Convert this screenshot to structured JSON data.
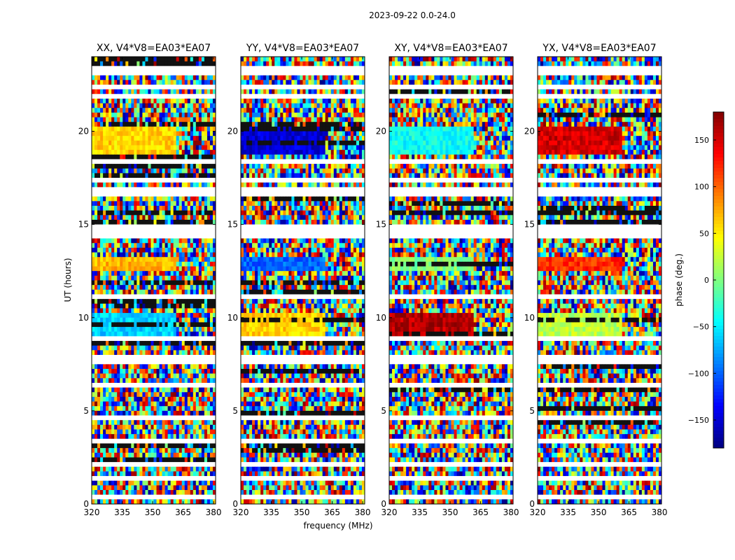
{
  "figure": {
    "suptitle": "2023-09-22 0.0-24.0"
  },
  "chart_data": {
    "type": "heatmap",
    "shared": {
      "xlabel": "frequency (MHz)",
      "ylabel": "UT (hours)",
      "xlim": [
        320,
        381
      ],
      "ylim": [
        0,
        24
      ],
      "xticks": [
        320,
        335,
        350,
        365,
        380
      ],
      "yticks": [
        0,
        5,
        10,
        15,
        20
      ],
      "colormap": "jet"
    },
    "panels": [
      {
        "title": "XX, V4*V8=EA03*EA07",
        "coherent_phase_deg": {
          "band_19_20h": 60,
          "band_9_10h": -60,
          "band_12_13h": 70
        }
      },
      {
        "title": "YY, V4*V8=EA03*EA07",
        "coherent_phase_deg": {
          "band_19_20h": -150,
          "band_9_10h": 60,
          "band_12_13h": -100
        }
      },
      {
        "title": "XY, V4*V8=EA03*EA07",
        "coherent_phase_deg": {
          "band_19_20h": -40,
          "band_9_10h": 160,
          "band_12_13h": 0
        }
      },
      {
        "title": "YX, V4*V8=EA03*EA07",
        "coherent_phase_deg": {
          "band_19_20h": 150,
          "band_9_10h": 20,
          "band_12_13h": 120
        }
      }
    ],
    "colorbar": {
      "label": "phase (deg.)",
      "range": [
        -180,
        180
      ],
      "ticks": [
        -150,
        -100,
        -50,
        0,
        50,
        100,
        150
      ],
      "tick_labels": [
        "−150",
        "−100",
        "−50",
        "0",
        "50",
        "100",
        "150"
      ]
    },
    "flagged_hours": [
      0.4,
      1.45,
      2.15,
      3.35,
      4.55,
      6.35,
      7.75,
      8.85,
      11.15,
      14.35,
      14.6,
      14.85,
      16.7,
      16.95,
      17.45,
      18.4,
      21.8,
      22.45,
      23.15,
      23.45
    ],
    "colors": {
      "jet_low": "#00007f",
      "jet_high": "#7f0000",
      "flagged": "#ffffff",
      "axes": "#000000"
    }
  }
}
